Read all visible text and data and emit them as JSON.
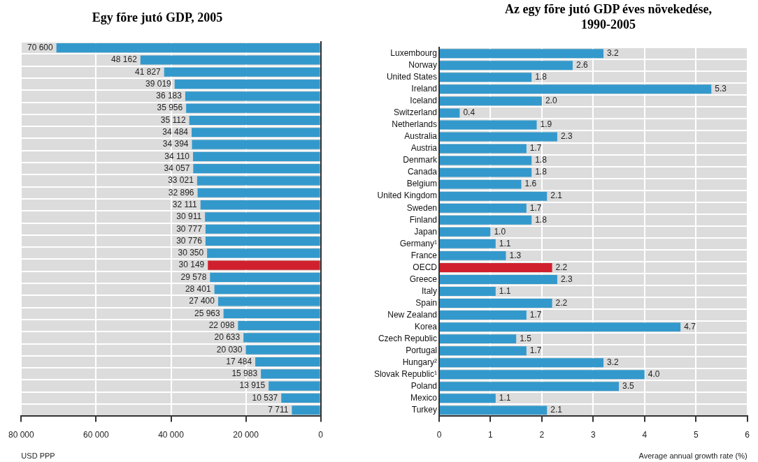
{
  "chart_data": [
    {
      "type": "bar",
      "orientation": "horizontal",
      "title": "Egy fõre jutó GDP,  2005",
      "xlabel": "USD PPP",
      "categories": [
        null,
        null,
        null,
        null,
        null,
        null,
        null,
        null,
        null,
        null,
        null,
        null,
        null,
        null,
        null,
        null,
        null,
        null,
        null,
        null,
        null,
        null,
        null,
        null,
        null,
        null,
        null,
        null,
        null,
        null,
        null
      ],
      "values": [
        70600,
        48162,
        41827,
        39019,
        36183,
        35956,
        35112,
        34484,
        34394,
        34110,
        34057,
        33021,
        32896,
        32111,
        30911,
        30777,
        30776,
        30350,
        30149,
        29578,
        28401,
        27400,
        25963,
        22098,
        20633,
        20030,
        17484,
        15983,
        13915,
        10537,
        7711
      ],
      "value_labels": [
        "70 600",
        "48 162",
        "41 827",
        "39 019",
        "36 183",
        "35 956",
        "35 112",
        "34 484",
        "34 394",
        "34 110",
        "34 057",
        "33 021",
        "32 896",
        "32 111",
        "30 911",
        "30 777",
        "30 776",
        "30 350",
        "30 149",
        "29 578",
        "28 401",
        "27 400",
        "25 963",
        "22 098",
        "20 633",
        "20 030",
        "17 484",
        "15 983",
        "13 915",
        "10 537",
        "7 711"
      ],
      "colors": [
        "#3399cc",
        "#3399cc",
        "#3399cc",
        "#3399cc",
        "#3399cc",
        "#3399cc",
        "#3399cc",
        "#3399cc",
        "#3399cc",
        "#3399cc",
        "#3399cc",
        "#3399cc",
        "#3399cc",
        "#3399cc",
        "#3399cc",
        "#3399cc",
        "#3399cc",
        "#3399cc",
        "#d0202e",
        "#3399cc",
        "#3399cc",
        "#3399cc",
        "#3399cc",
        "#3399cc",
        "#3399cc",
        "#3399cc",
        "#3399cc",
        "#3399cc",
        "#3399cc",
        "#3399cc",
        "#3399cc"
      ],
      "xlim": [
        80000,
        0
      ],
      "xticks": [
        {
          "value": 80000,
          "label": "80 000"
        },
        {
          "value": 60000,
          "label": "60 000"
        },
        {
          "value": 40000,
          "label": "40 000"
        },
        {
          "value": 20000,
          "label": "20 000"
        },
        0
      ],
      "grid": true,
      "tick_labels": "x"
    },
    {
      "type": "bar",
      "orientation": "horizontal",
      "title": "Az egy fõre jutó GDP éves növekedése, 1990-2005",
      "xlabel": "Average annual growth rate (%)",
      "categories": [
        "Luxembourg",
        "Norway",
        "United States",
        "Ireland",
        "Iceland",
        "Switzerland",
        "Netherlands",
        "Australia",
        "Austria",
        "Denmark",
        "Canada",
        "Belgium",
        "United Kingdom",
        "Sweden",
        "Finland",
        "Japan",
        "Germany¹",
        "France",
        "OECD",
        "Greece",
        "Italy",
        "Spain",
        "New Zealand",
        "Korea",
        "Czech Republic",
        "Portugal",
        "Hungary²",
        "Slovak Republic¹",
        "Poland",
        "Mexico",
        "Turkey"
      ],
      "values": [
        3.2,
        2.6,
        1.8,
        5.3,
        2.0,
        0.4,
        1.9,
        2.3,
        1.7,
        1.8,
        1.8,
        1.6,
        2.1,
        1.7,
        1.8,
        1.0,
        1.1,
        1.3,
        2.2,
        2.3,
        1.1,
        2.2,
        1.7,
        4.7,
        1.5,
        1.7,
        3.2,
        4.0,
        3.5,
        1.1,
        2.1
      ],
      "value_labels": [
        "3.2",
        "2.6",
        "1.8",
        "5.3",
        "2.0",
        "0.4",
        "1.9",
        "2.3",
        "1.7",
        "1.8",
        "1.8",
        "1.6",
        "2.1",
        "1.7",
        "1.8",
        "1.0",
        "1.1",
        "1.3",
        "2.2",
        "2.3",
        "1.1",
        "2.2",
        "1.7",
        "4.7",
        "1.5",
        "1.7",
        "3.2",
        "4.0",
        "3.5",
        "1.1",
        "2.1"
      ],
      "colors": [
        "#3399cc",
        "#3399cc",
        "#3399cc",
        "#3399cc",
        "#3399cc",
        "#3399cc",
        "#3399cc",
        "#3399cc",
        "#3399cc",
        "#3399cc",
        "#3399cc",
        "#3399cc",
        "#3399cc",
        "#3399cc",
        "#3399cc",
        "#3399cc",
        "#3399cc",
        "#3399cc",
        "#d0202e",
        "#3399cc",
        "#3399cc",
        "#3399cc",
        "#3399cc",
        "#3399cc",
        "#3399cc",
        "#3399cc",
        "#3399cc",
        "#3399cc",
        "#3399cc",
        "#3399cc",
        "#3399cc"
      ],
      "xlim": [
        0,
        6
      ],
      "xticks": [
        0,
        1,
        2,
        3,
        4,
        5,
        6
      ],
      "grid": true
    }
  ]
}
